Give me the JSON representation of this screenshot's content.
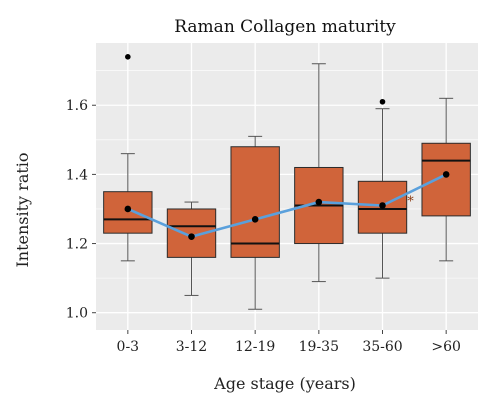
{
  "chart_data": {
    "type": "box",
    "title": "Raman Collagen maturity",
    "xlabel": "Age stage (years)",
    "ylabel": "Intensity ratio",
    "categories": [
      "0-3",
      "3-12",
      "12-19",
      "19-35",
      "35-60",
      ">60"
    ],
    "ylim": [
      0.95,
      1.78
    ],
    "yticks": [
      1.0,
      1.2,
      1.4,
      1.6
    ],
    "ytick_labels": [
      "1.0",
      "1.2",
      "1.4",
      "1.6"
    ],
    "grid": true,
    "boxes": [
      {
        "category": "0-3",
        "min": 1.15,
        "q1": 1.23,
        "median": 1.27,
        "q3": 1.35,
        "max": 1.46,
        "mean": 1.3,
        "outliers": [
          1.74
        ]
      },
      {
        "category": "3-12",
        "min": 1.05,
        "q1": 1.16,
        "median": 1.25,
        "q3": 1.3,
        "max": 1.32,
        "mean": 1.22,
        "outliers": []
      },
      {
        "category": "12-19",
        "min": 1.01,
        "q1": 1.16,
        "median": 1.2,
        "q3": 1.48,
        "max": 1.51,
        "mean": 1.27,
        "outliers": []
      },
      {
        "category": "19-35",
        "min": 1.09,
        "q1": 1.2,
        "median": 1.31,
        "q3": 1.42,
        "max": 1.72,
        "mean": 1.32,
        "outliers": []
      },
      {
        "category": "35-60",
        "min": 1.1,
        "q1": 1.23,
        "median": 1.3,
        "q3": 1.38,
        "max": 1.59,
        "mean": 1.31,
        "outliers": [
          1.61
        ]
      },
      {
        "category": ">60",
        "min": 1.15,
        "q1": 1.28,
        "median": 1.44,
        "q3": 1.49,
        "max": 1.62,
        "mean": 1.4,
        "outliers": []
      }
    ],
    "mean_line": [
      1.3,
      1.22,
      1.27,
      1.32,
      1.31,
      1.4
    ],
    "annotations": [
      {
        "text": "*",
        "category": "35-60",
        "y": 1.325
      }
    ],
    "colors": {
      "box_fill": "#d0643a",
      "box_stroke": "#2b2b2b",
      "mean_line": "#5aa0dc",
      "mean_marker": "#000000",
      "panel_background": "#ebebeb",
      "grid": "#ffffff",
      "annotation": "#8a3a10"
    }
  }
}
